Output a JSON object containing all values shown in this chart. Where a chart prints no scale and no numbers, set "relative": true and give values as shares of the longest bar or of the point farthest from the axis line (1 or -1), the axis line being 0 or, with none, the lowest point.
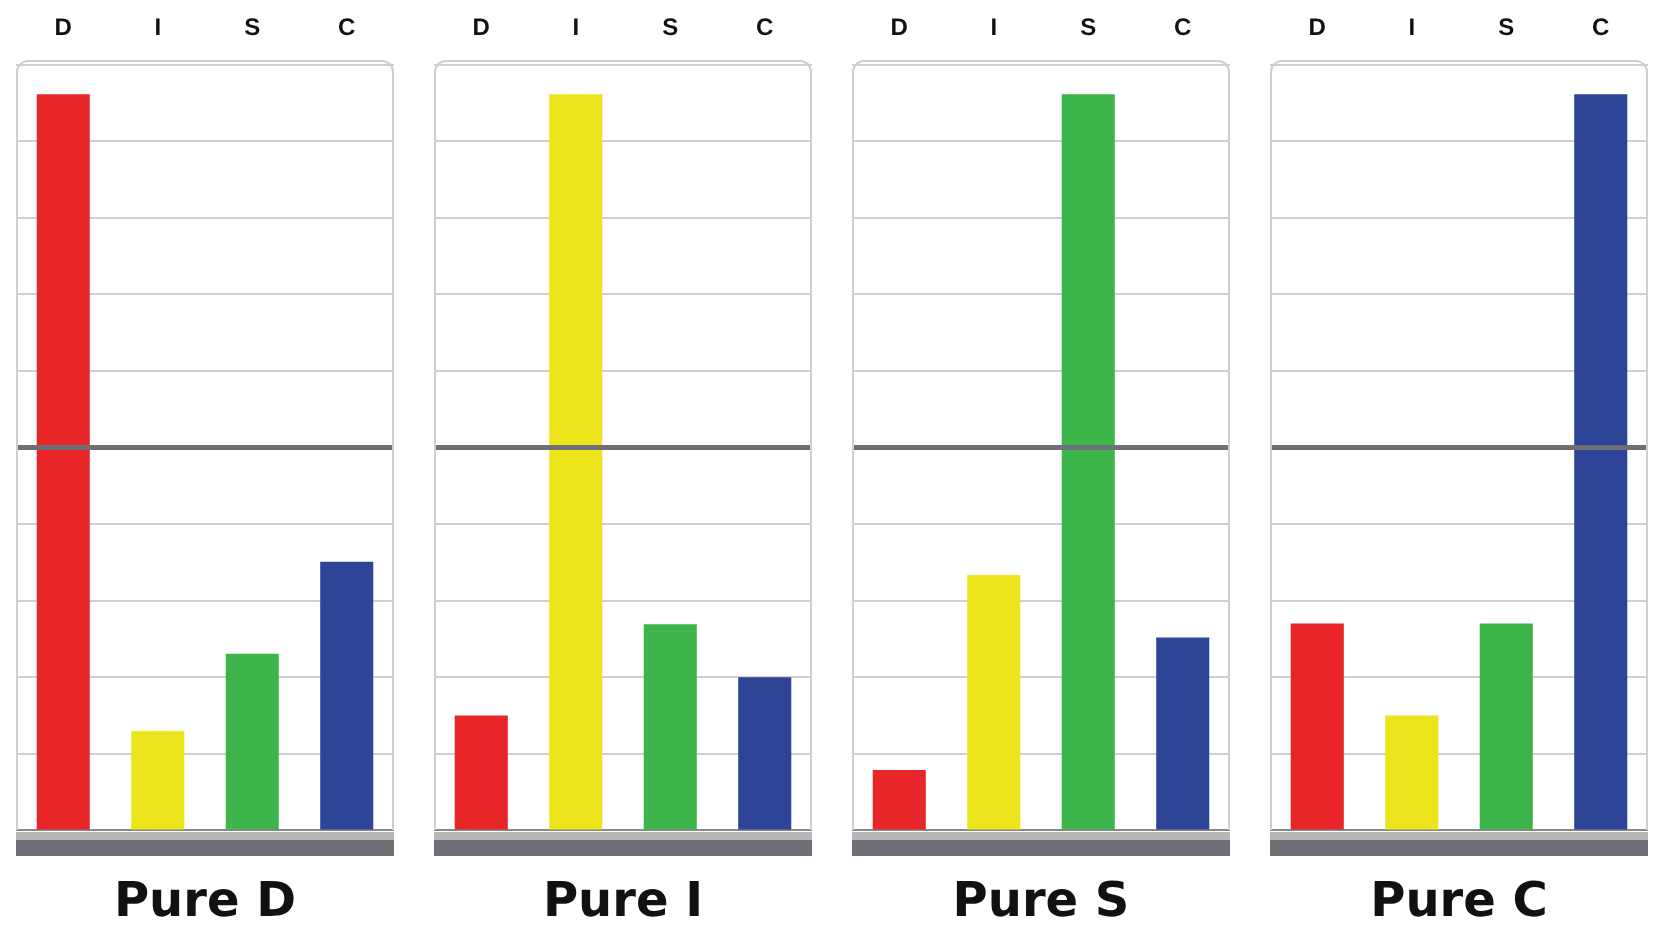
{
  "chart_data": [
    {
      "type": "bar",
      "title": "Pure D",
      "categories": [
        "D",
        "I",
        "S",
        "C"
      ],
      "values": [
        1,
        0.135,
        0.24,
        0.365
      ],
      "colors": [
        "#e8262a",
        "#ece51c",
        "#3db54a",
        "#2e4496"
      ],
      "relative": true,
      "grid": "y",
      "legend": false,
      "ref_lines": [
        {
          "axis": "y",
          "value": 0.52,
          "color": "#6e7076"
        }
      ]
    },
    {
      "type": "bar",
      "title": "Pure I",
      "categories": [
        "D",
        "I",
        "S",
        "C"
      ],
      "values": [
        0.156,
        1,
        0.28,
        0.208
      ],
      "colors": [
        "#e8262a",
        "#ece51c",
        "#3db54a",
        "#2e4496"
      ],
      "relative": true,
      "grid": "y",
      "legend": false,
      "ref_lines": [
        {
          "axis": "y",
          "value": 0.52,
          "color": "#6e7076"
        }
      ]
    },
    {
      "type": "bar",
      "title": "Pure S",
      "categories": [
        "D",
        "I",
        "S",
        "C"
      ],
      "values": [
        0.082,
        0.347,
        1,
        0.262
      ],
      "colors": [
        "#e8262a",
        "#ece51c",
        "#3db54a",
        "#2e4496"
      ],
      "relative": true,
      "grid": "y",
      "legend": false,
      "ref_lines": [
        {
          "axis": "y",
          "value": 0.52,
          "color": "#6e7076"
        }
      ]
    },
    {
      "type": "bar",
      "title": "Pure C",
      "categories": [
        "D",
        "I",
        "S",
        "C"
      ],
      "values": [
        0.281,
        0.156,
        0.281,
        1
      ],
      "colors": [
        "#e8262a",
        "#ece51c",
        "#3db54a",
        "#2e4496"
      ],
      "relative": true,
      "grid": "y",
      "legend": false,
      "ref_lines": [
        {
          "axis": "y",
          "value": 0.52,
          "color": "#6e7076"
        }
      ]
    }
  ]
}
